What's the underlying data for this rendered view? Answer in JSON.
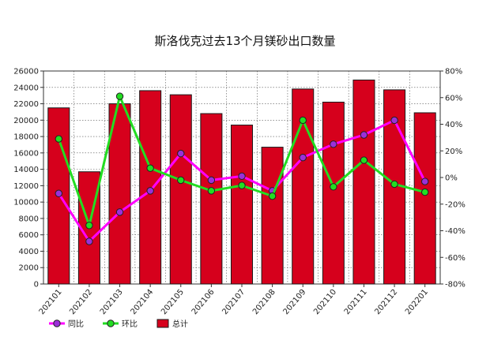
{
  "chart_data": {
    "type": "bar",
    "title": "斯洛伐克过去13个月镁砂出口数量",
    "categories": [
      "202101",
      "202102",
      "202103",
      "202104",
      "202105",
      "202106",
      "202107",
      "202108",
      "202109",
      "202110",
      "202111",
      "202112",
      "202201"
    ],
    "series": [
      {
        "name": "总计",
        "kind": "bar",
        "axis": "left",
        "values": [
          21500,
          13700,
          22000,
          23600,
          23100,
          20800,
          19400,
          16700,
          23800,
          22200,
          24900,
          23700,
          20900
        ]
      },
      {
        "name": "同比",
        "kind": "line",
        "axis": "right",
        "values": [
          -12,
          -48,
          -26,
          -10,
          18,
          -2,
          1,
          -10,
          15,
          25,
          32,
          43,
          -3
        ]
      },
      {
        "name": "环比",
        "kind": "line",
        "axis": "right",
        "values": [
          29,
          -36,
          61,
          7,
          -2,
          -10,
          -6,
          -14,
          43,
          -7,
          13,
          -5,
          -11
        ]
      }
    ],
    "y_left": {
      "min": 0,
      "max": 26000,
      "step": 2000
    },
    "y_right": {
      "min": -80,
      "max": 80,
      "step": 20,
      "unit": "%"
    },
    "grid": true,
    "legend_position": "bottom-left",
    "colors": {
      "bar_fill": "#d6001c",
      "bar_stroke": "#1a1a1a",
      "yoy_line": "#ff00ff",
      "yoy_marker": "#9b30d9",
      "mom_line": "#22dd22",
      "mom_marker": "#22dd22",
      "grid": "#555555"
    }
  }
}
